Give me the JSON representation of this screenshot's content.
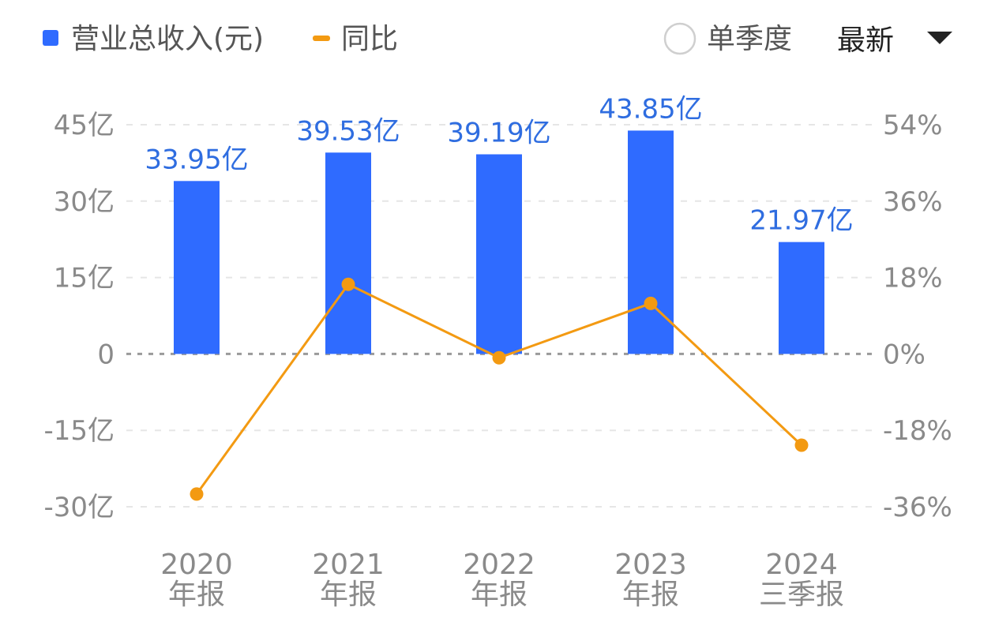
{
  "legend": {
    "bar_series_label": "营业总收入(元)",
    "line_series_label": "同比"
  },
  "controls": {
    "single_quarter_label": "单季度",
    "sort_label": "最新"
  },
  "colors": {
    "bar": "#2f6bff",
    "line": "#f39a12",
    "bar_label": "#2f6de0",
    "grid": "#e6e6e6",
    "zero_line": "#9a9a9a"
  },
  "chart_data": {
    "type": "bar",
    "categories": [
      {
        "line1": "2020",
        "line2": "年报"
      },
      {
        "line1": "2021",
        "line2": "年报"
      },
      {
        "line1": "2022",
        "line2": "年报"
      },
      {
        "line1": "2023",
        "line2": "年报"
      },
      {
        "line1": "2024",
        "line2": "三季报"
      }
    ],
    "series": [
      {
        "name": "营业总收入(元)",
        "type": "bar",
        "axis": "left",
        "values": [
          33.95,
          39.53,
          39.19,
          43.85,
          21.97
        ],
        "labels": [
          "33.95亿",
          "39.53亿",
          "39.19亿",
          "43.85亿",
          "21.97亿"
        ]
      },
      {
        "name": "同比",
        "type": "line",
        "axis": "right",
        "values": [
          -33.0,
          16.4,
          -0.9,
          11.9,
          -21.5
        ]
      }
    ],
    "left_axis": {
      "min": -30,
      "max": 45,
      "ticks": [
        45,
        30,
        15,
        0,
        -15,
        -30
      ],
      "tick_labels": [
        "45亿",
        "30亿",
        "15亿",
        "0",
        "-15亿",
        "-30亿"
      ]
    },
    "right_axis": {
      "min": -36,
      "max": 54,
      "ticks": [
        54,
        36,
        18,
        0,
        -18,
        -36
      ],
      "tick_labels": [
        "54%",
        "36%",
        "18%",
        "0%",
        "-18%",
        "-36%"
      ]
    },
    "grid": true,
    "legend_position": "top-left"
  }
}
